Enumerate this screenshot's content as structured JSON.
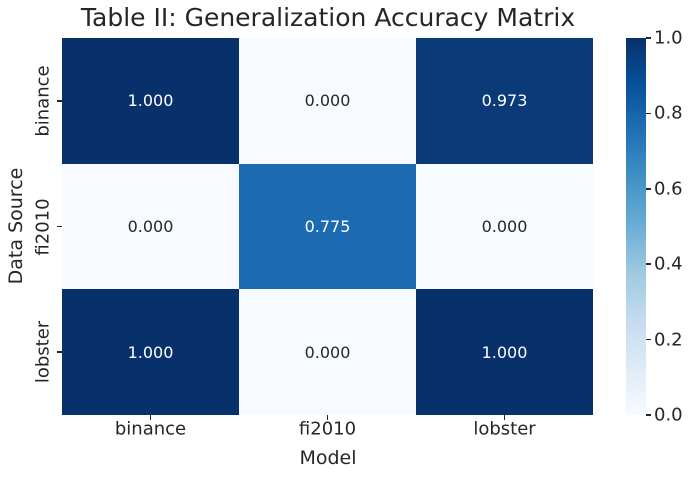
{
  "title": "Table II: Generalization Accuracy Matrix",
  "chart_data": {
    "type": "heatmap",
    "title": "Table II: Generalization Accuracy Matrix",
    "xlabel": "Model",
    "ylabel": "Data Source",
    "x_categories": [
      "binance",
      "fi2010",
      "lobster"
    ],
    "y_categories": [
      "binance",
      "fi2010",
      "lobster"
    ],
    "values": [
      [
        1.0,
        0.0,
        0.973
      ],
      [
        0.0,
        0.775,
        0.0
      ],
      [
        1.0,
        0.0,
        1.0
      ]
    ],
    "cell_labels": [
      [
        "1.000",
        "0.000",
        "0.973"
      ],
      [
        "0.000",
        "0.775",
        "0.000"
      ],
      [
        "1.000",
        "0.000",
        "1.000"
      ]
    ],
    "colormap": "Blues",
    "vmin": 0.0,
    "vmax": 1.0,
    "colorbar_tick_labels_bottom_to_top": [
      "0.0",
      "0.2",
      "0.4",
      "0.6",
      "0.8",
      "1.0"
    ],
    "colorbar_position": "right",
    "grid": false
  },
  "colors": {
    "background": "#ffffff",
    "text": "#262626",
    "tick_mark": "#262626",
    "annot_on_dark": "#ffffff",
    "annot_on_light": "#262626",
    "cell_colors": [
      [
        "#08306b",
        "#f7fbff",
        "#0b3a78"
      ],
      [
        "#f7fbff",
        "#1c6bb0",
        "#f7fbff"
      ],
      [
        "#08306b",
        "#f7fbff",
        "#08306b"
      ]
    ],
    "colorbar_gradient_bottom_to_top": [
      "#f7fbff",
      "#deebf7",
      "#c6dbef",
      "#9ecae1",
      "#6baed6",
      "#4292c6",
      "#2171b5",
      "#08519c",
      "#08306b"
    ]
  }
}
